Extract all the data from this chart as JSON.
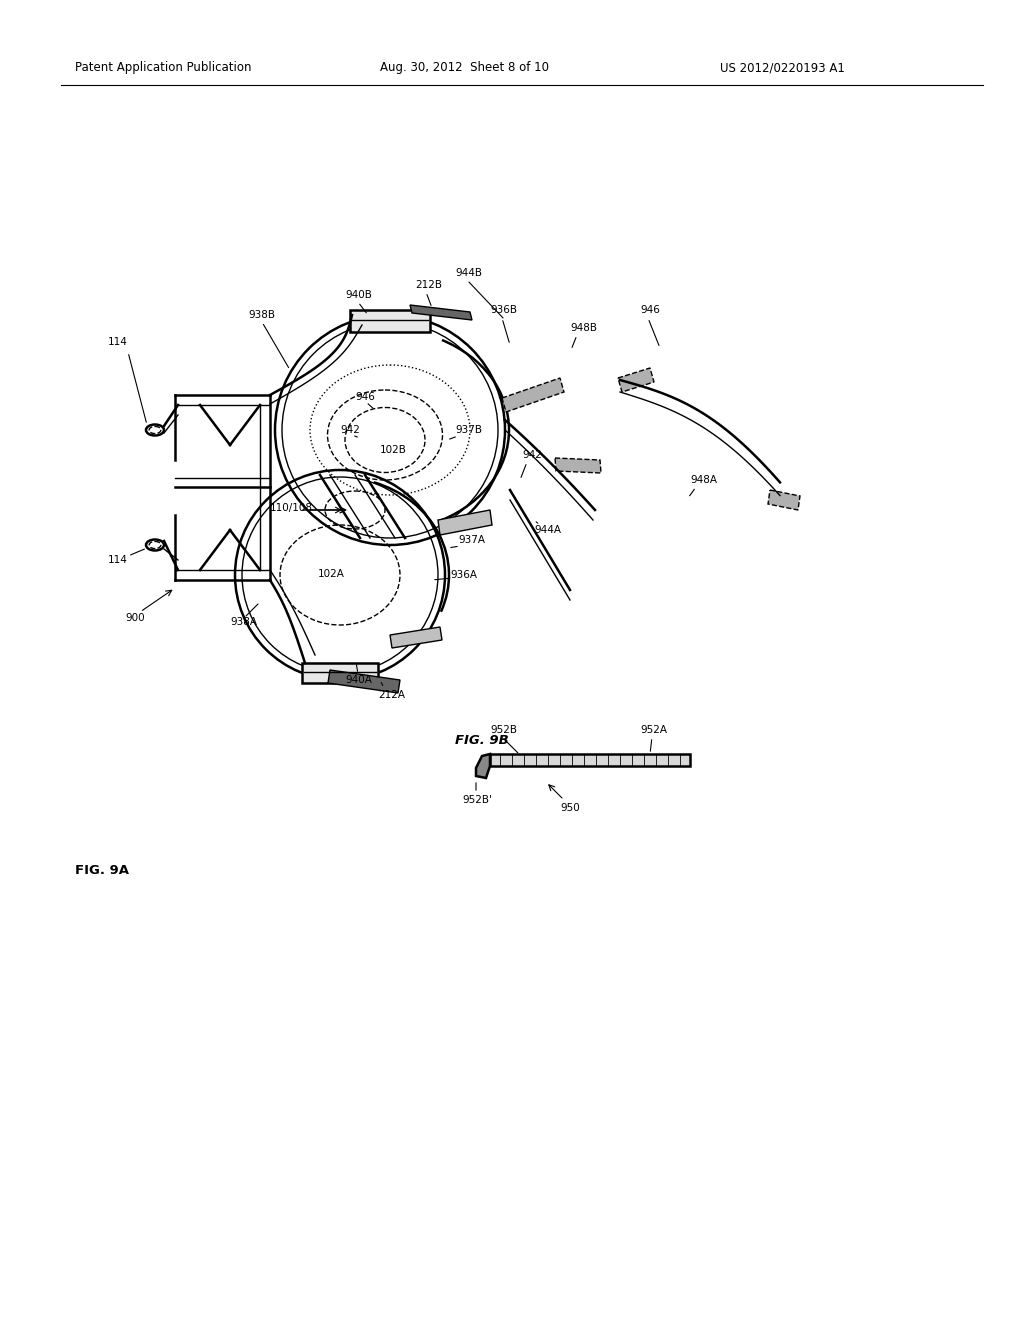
{
  "bg_color": "#ffffff",
  "header_left": "Patent Application Publication",
  "header_mid": "Aug. 30, 2012  Sheet 8 of 10",
  "header_right": "US 2012/0220193 A1",
  "fig_label_a": "FIG. 9A",
  "fig_label_b": "FIG. 9B",
  "line_color": "#000000",
  "lw": 1.0,
  "lw_thick": 1.8,
  "fs_label": 7.5,
  "fs_header": 8.5,
  "fs_fig": 9.5
}
